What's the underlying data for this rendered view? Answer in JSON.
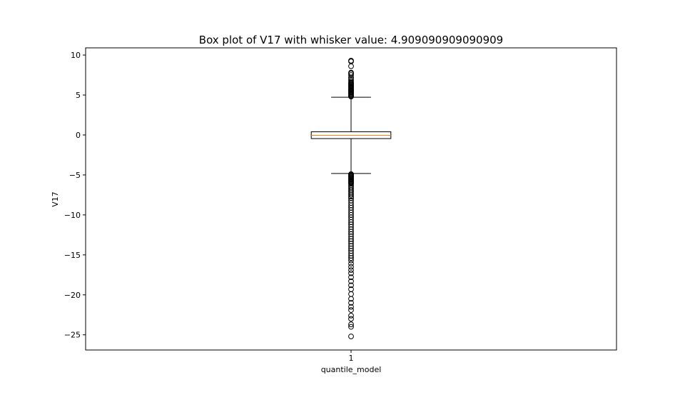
{
  "chart_data": {
    "type": "box",
    "title": "Box plot of V17 with whisker value: 4.909090909090909",
    "xlabel": "quantile_model",
    "ylabel": "V17",
    "categories": [
      "1"
    ],
    "ylim": [
      -26.9,
      10.9
    ],
    "yticks": [
      10,
      5,
      0,
      -5,
      -10,
      -15,
      -20,
      -25
    ],
    "grid": false,
    "colors": {
      "box_edge": "#000000",
      "median": "#ff7f0e",
      "whisker": "#000000",
      "flier_edge": "#000000"
    },
    "series": [
      {
        "category": "1",
        "q1": -0.45,
        "median": -0.05,
        "q3": 0.4,
        "whisker_low": -4.82,
        "whisker_high": 4.72,
        "fliers_high": [
          4.8,
          4.9,
          5.0,
          5.1,
          5.2,
          5.3,
          5.4,
          5.5,
          5.6,
          5.7,
          5.8,
          5.9,
          6.0,
          6.1,
          6.2,
          6.3,
          6.4,
          6.5,
          6.6,
          6.8,
          7.0,
          7.2,
          7.5,
          7.7,
          7.8,
          8.6,
          9.2,
          9.3
        ],
        "fliers_low": [
          -4.9,
          -5.0,
          -5.1,
          -5.2,
          -5.3,
          -5.4,
          -5.5,
          -5.6,
          -5.7,
          -5.8,
          -5.9,
          -6.0,
          -6.1,
          -6.3,
          -6.5,
          -6.7,
          -6.9,
          -7.1,
          -7.3,
          -7.5,
          -7.7,
          -7.9,
          -8.2,
          -8.5,
          -8.8,
          -9.1,
          -9.4,
          -9.7,
          -10.0,
          -10.3,
          -10.6,
          -10.9,
          -11.2,
          -11.5,
          -11.8,
          -12.1,
          -12.4,
          -12.7,
          -13.0,
          -13.3,
          -13.6,
          -13.9,
          -14.2,
          -14.5,
          -14.8,
          -15.1,
          -15.4,
          -15.7,
          -16.1,
          -16.5,
          -16.9,
          -17.3,
          -17.8,
          -18.3,
          -18.8,
          -19.3,
          -19.9,
          -20.5,
          -21.0,
          -21.5,
          -21.9,
          -22.6,
          -23.0,
          -23.7,
          -24.0,
          -25.2
        ]
      }
    ]
  }
}
